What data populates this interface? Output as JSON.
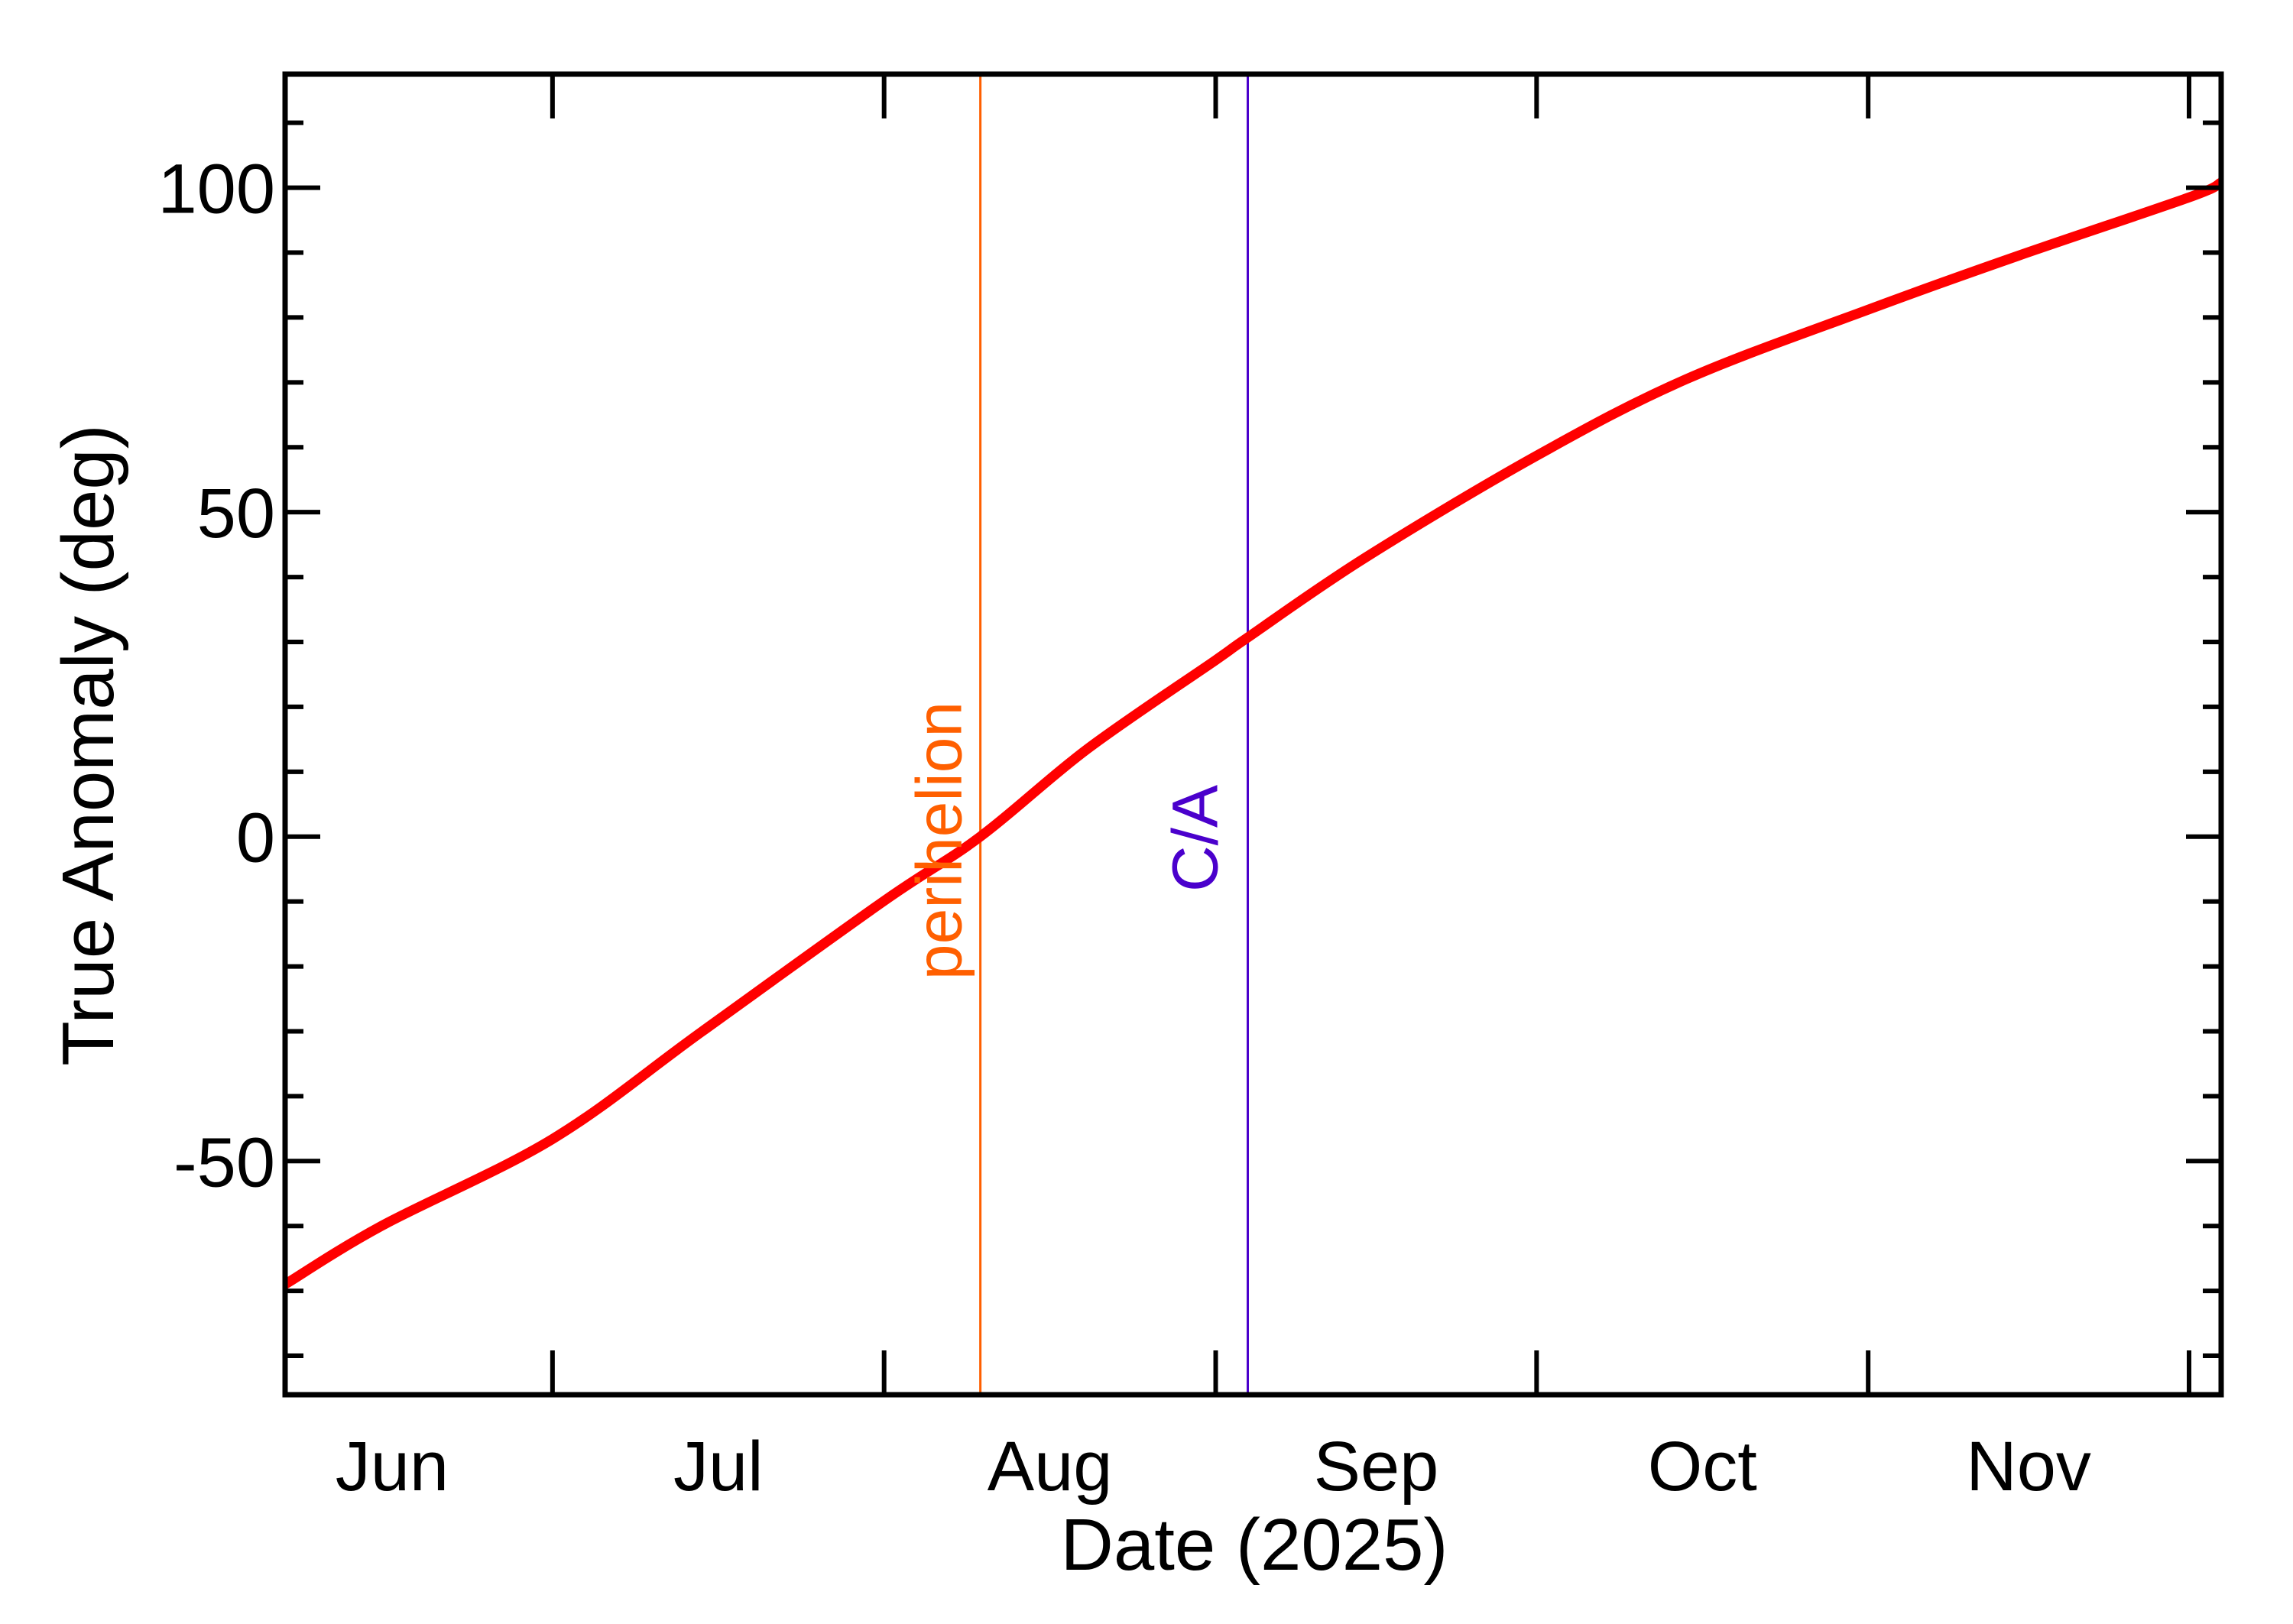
{
  "chart_data": {
    "type": "line",
    "title": "",
    "xlabel": "Date (2025)",
    "ylabel": "True Anomaly (deg)",
    "x_unit": "day offset from 2025-07-01",
    "xlim_dates": [
      "2025-06-06",
      "2025-12-04"
    ],
    "xlim": [
      -25,
      156
    ],
    "ylim": [
      -86,
      117.5
    ],
    "grid": false,
    "legend": null,
    "x_ticks": [
      {
        "date": "2025-07-01",
        "offset": 0
      },
      {
        "date": "2025-08-01",
        "offset": 31
      },
      {
        "date": "2025-09-01",
        "offset": 62
      },
      {
        "date": "2025-10-01",
        "offset": 92
      },
      {
        "date": "2025-11-01",
        "offset": 123
      },
      {
        "date": "2025-12-01",
        "offset": 153
      }
    ],
    "x_tick_labels": [
      {
        "label": "Jun",
        "offset": -15
      },
      {
        "label": "Jul",
        "offset": 15.5
      },
      {
        "label": "Aug",
        "offset": 46.5
      },
      {
        "label": "Sep",
        "offset": 77
      },
      {
        "label": "Oct",
        "offset": 107.5
      },
      {
        "label": "Nov",
        "offset": 138
      }
    ],
    "y_ticks_major": [
      -50,
      0,
      50,
      100
    ],
    "y_tick_labels": [
      "-50",
      "0",
      "50",
      "100"
    ],
    "y_ticks_minor": [
      -80,
      -70,
      -60,
      -40,
      -30,
      -20,
      -10,
      10,
      20,
      30,
      40,
      60,
      70,
      80,
      90,
      110
    ],
    "series": [
      {
        "name": "True Anomaly",
        "color": "#ff0000",
        "x": [
          -25,
          -16,
          0,
          14,
          31,
          40,
          50,
          62,
          65,
          76,
          92,
          106,
          123,
          137,
          153,
          156
        ],
        "dates": [
          "2025-06-06",
          "2025-06-15",
          "2025-07-01",
          "2025-07-15",
          "2025-08-01",
          "2025-08-10",
          "2025-08-20",
          "2025-09-01",
          "2025-09-04",
          "2025-09-15",
          "2025-10-01",
          "2025-10-15",
          "2025-11-01",
          "2025-11-15",
          "2025-12-01",
          "2025-12-04"
        ],
        "values": [
          -69.0,
          -60.0,
          -46.6,
          -30.0,
          -9.9,
          0.0,
          13.5,
          27.2,
          30.7,
          43.0,
          58.7,
          70.5,
          81.2,
          89.5,
          98.5,
          100.8
        ]
      }
    ],
    "annotations": [
      {
        "label": "perihelion",
        "type": "vline",
        "offset": 40,
        "date": "2025-08-10",
        "color": "#ff5f00"
      },
      {
        "label": "C/A",
        "type": "vline",
        "offset": 65,
        "date": "2025-09-04",
        "color": "#4a00cc"
      }
    ]
  }
}
